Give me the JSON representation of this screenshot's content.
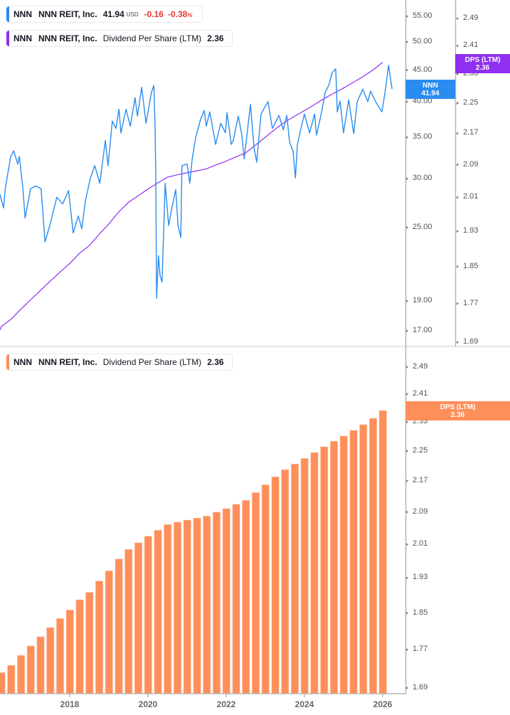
{
  "colors": {
    "price": "#2a8cf0",
    "dps_line": "#8f2ff0",
    "dps_bar": "#ff8f5a",
    "negative": "#e53935"
  },
  "legend_price": {
    "symbol": "NNN",
    "name": "NNN REIT, Inc.",
    "value": "41.94",
    "unit": "USD",
    "change": "-0.16",
    "change_pct": "-0.38",
    "pct_sign": "%"
  },
  "legend_dps_top": {
    "symbol": "NNN",
    "name": "NNN REIT, Inc.",
    "metric": "Dividend Per Share (LTM)",
    "value": "2.36"
  },
  "legend_dps_bottom": {
    "symbol": "NNN",
    "name": "NNN REIT, Inc.",
    "metric": "Dividend Per Share (LTM)",
    "value": "2.36"
  },
  "tags": {
    "price": {
      "label": "NNN",
      "value": "41.94"
    },
    "dps_top": {
      "label": "DPS (LTM)",
      "value": "2.36"
    },
    "dps_bottom": {
      "label": "DPS (LTM)",
      "value": "2.36"
    }
  },
  "chart_data": [
    {
      "type": "line",
      "title": "",
      "xlabel": "",
      "ylabel": "",
      "y_scale": "log",
      "price_axis_ticks": [
        "55.00",
        "50.00",
        "45.00",
        "40.00",
        "35.00",
        "30.00",
        "25.00",
        "19.00",
        "17.00"
      ],
      "dps_axis_ticks": [
        "2.49",
        "2.41",
        "2.33",
        "2.25",
        "2.17",
        "2.09",
        "2.01",
        "1.93",
        "1.85",
        "1.77",
        "1.69"
      ],
      "series": [
        {
          "name": "NNN REIT, Inc.",
          "axis": "price",
          "x": [
            2016.22,
            2016.31,
            2016.35,
            2016.49,
            2016.57,
            2016.67,
            2016.71,
            2016.8,
            2016.86,
            2017.0,
            2017.13,
            2017.27,
            2017.37,
            2017.49,
            2017.67,
            2017.82,
            2017.97,
            2018.09,
            2018.22,
            2018.31,
            2018.4,
            2018.53,
            2018.64,
            2018.77,
            2018.91,
            2018.98,
            2019.09,
            2019.18,
            2019.26,
            2019.31,
            2019.44,
            2019.55,
            2019.67,
            2019.73,
            2019.84,
            2019.95,
            2020.09,
            2020.15,
            2020.18,
            2020.2,
            2020.22,
            2020.27,
            2020.31,
            2020.36,
            2020.44,
            2020.53,
            2020.62,
            2020.71,
            2020.77,
            2020.84,
            2020.87,
            2021.0,
            2021.07,
            2021.13,
            2021.22,
            2021.35,
            2021.44,
            2021.49,
            2021.58,
            2021.73,
            2021.86,
            2021.98,
            2022.02,
            2022.13,
            2022.18,
            2022.31,
            2022.4,
            2022.46,
            2022.62,
            2022.71,
            2022.78,
            2022.89,
            2023.07,
            2023.18,
            2023.35,
            2023.46,
            2023.55,
            2023.62,
            2023.71,
            2023.77,
            2023.82,
            2023.91,
            2024.0,
            2024.13,
            2024.26,
            2024.31,
            2024.44,
            2024.53,
            2024.62,
            2024.71,
            2024.8,
            2024.84,
            2024.91,
            2025.0,
            2025.13,
            2025.26,
            2025.35,
            2025.49,
            2025.62,
            2025.69,
            2025.82,
            2025.98,
            2026.06,
            2026.15,
            2026.24
          ],
          "y": [
            28.3,
            26.9,
            28.8,
            32.6,
            33.3,
            31.7,
            32.6,
            29.1,
            25.9,
            28.9,
            29.2,
            28.9,
            23.7,
            25.2,
            28.0,
            27.3,
            28.7,
            24.5,
            26.1,
            24.9,
            27.6,
            30.1,
            31.5,
            29.5,
            34.6,
            31.5,
            37.2,
            36.2,
            38.9,
            35.6,
            38.9,
            36.5,
            40.6,
            37.9,
            42.2,
            36.9,
            41.4,
            42.5,
            36.9,
            30.7,
            19.2,
            22.5,
            20.9,
            20.4,
            29.5,
            25.2,
            27.1,
            28.8,
            25.2,
            24.1,
            31.5,
            31.7,
            29.5,
            32.3,
            35.0,
            37.5,
            38.7,
            36.5,
            38.5,
            34.1,
            36.9,
            35.6,
            38.4,
            34.1,
            34.6,
            37.9,
            35.3,
            32.3,
            39.6,
            33.7,
            31.9,
            38.2,
            40.0,
            36.2,
            38.0,
            36.0,
            38.0,
            34.4,
            33.2,
            30.1,
            34.1,
            36.2,
            38.2,
            35.6,
            38.2,
            35.3,
            38.5,
            41.4,
            42.5,
            44.6,
            45.2,
            38.5,
            40.1,
            35.6,
            40.3,
            35.5,
            40.0,
            41.9,
            40.0,
            41.6,
            40.0,
            38.5,
            41.4,
            45.8,
            41.94
          ]
        },
        {
          "name": "Dividend Per Share (LTM)",
          "axis": "dps",
          "source": "quarterly"
        }
      ]
    },
    {
      "type": "bar",
      "title": "",
      "xlabel": "",
      "ylabel": "",
      "y_scale": "log",
      "ylim": [
        1.69,
        2.49
      ],
      "y_ticks": [
        "2.49",
        "2.41",
        "2.33",
        "2.25",
        "2.17",
        "2.09",
        "2.01",
        "1.93",
        "1.85",
        "1.77",
        "1.69"
      ],
      "x_ticks": [
        "2018",
        "2020",
        "2022",
        "2024",
        "2026"
      ],
      "series_name": "Dividend Per Share (LTM)",
      "x": [
        2016.25,
        2016.5,
        2016.75,
        2017.0,
        2017.25,
        2017.5,
        2017.75,
        2018.0,
        2018.25,
        2018.5,
        2018.75,
        2019.0,
        2019.25,
        2019.5,
        2019.75,
        2020.0,
        2020.25,
        2020.5,
        2020.75,
        2021.0,
        2021.25,
        2021.5,
        2021.75,
        2022.0,
        2022.25,
        2022.5,
        2022.75,
        2023.0,
        2023.25,
        2023.5,
        2023.75,
        2024.0,
        2024.25,
        2024.5,
        2024.75,
        2025.0,
        2025.25,
        2025.5,
        2025.75,
        2026.0
      ],
      "values": [
        1.722,
        1.737,
        1.758,
        1.778,
        1.798,
        1.818,
        1.838,
        1.857,
        1.88,
        1.897,
        1.923,
        1.947,
        1.975,
        1.998,
        2.014,
        2.03,
        2.045,
        2.059,
        2.065,
        2.07,
        2.075,
        2.08,
        2.09,
        2.099,
        2.11,
        2.12,
        2.14,
        2.16,
        2.181,
        2.2,
        2.215,
        2.23,
        2.246,
        2.262,
        2.277,
        2.291,
        2.307,
        2.323,
        2.341,
        2.363
      ]
    }
  ]
}
